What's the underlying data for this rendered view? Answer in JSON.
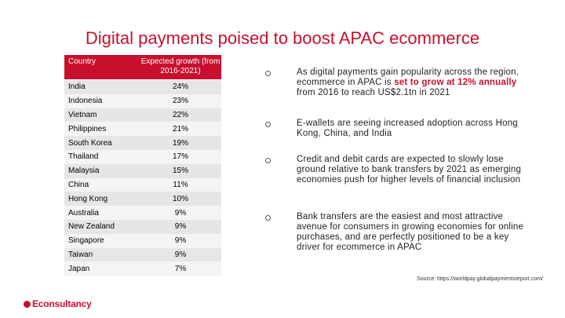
{
  "title": "Digital payments poised to boost APAC ecommerce",
  "table": {
    "headers": [
      "Country",
      "Expected growth (from 2016-2021)"
    ],
    "rows": [
      {
        "country": "India",
        "growth": "24%"
      },
      {
        "country": "Indonesia",
        "growth": "23%"
      },
      {
        "country": "Vietnam",
        "growth": "22%"
      },
      {
        "country": "Philippines",
        "growth": "21%"
      },
      {
        "country": "South Korea",
        "growth": "19%"
      },
      {
        "country": "Thailand",
        "growth": "17%"
      },
      {
        "country": "Malaysia",
        "growth": "15%"
      },
      {
        "country": "China",
        "growth": "11%"
      },
      {
        "country": "Hong Kong",
        "growth": "10%"
      },
      {
        "country": "Australia",
        "growth": "9%"
      },
      {
        "country": "New Zealand",
        "growth": "9%"
      },
      {
        "country": "Singapore",
        "growth": "9%"
      },
      {
        "country": "Taiwan",
        "growth": "9%"
      },
      {
        "country": "Japan",
        "growth": "7%"
      }
    ]
  },
  "bullets": [
    {
      "before": "As digital payments gain popularity across the region, ecommerce in APAC is ",
      "highlight": "set to grow at 12% annually",
      "after": " from 2016 to reach US$2.1tn in 2021"
    },
    {
      "text": "E-wallets are seeing increased adoption across Hong Kong, China, and India"
    },
    {
      "text": "Credit and debit cards are expected to slowly lose ground relative to bank transfers by 2021 as emerging economies push for higher levels of financial inclusion"
    },
    {
      "text": "Bank transfers are the easiest and most attractive avenue for consumers in growing economies for online purchases, and are perfectly positioned to be a key driver for ecommerce in APAC"
    }
  ],
  "source": "Source: https://worldpay.globalpaymentsreport.com/",
  "logo": "Econsultancy",
  "colors": {
    "accent": "#c8102e"
  }
}
